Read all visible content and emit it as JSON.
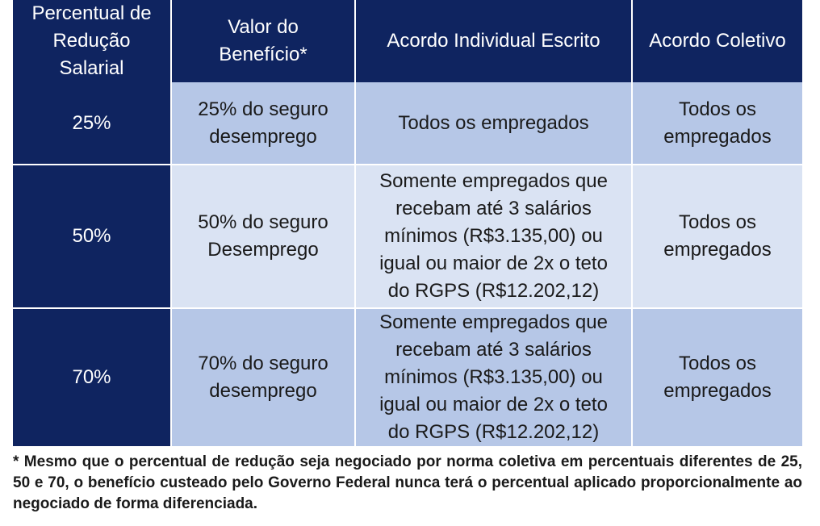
{
  "table": {
    "headers": [
      "Percentual de Redução Salarial",
      "Valor do Benefício*",
      "Acordo Individual Escrito",
      "Acordo Coletivo"
    ],
    "rows": [
      {
        "reduction": "25%",
        "benefit": "25% do seguro desemprego",
        "individual": "Todos os empregados",
        "collective": "Todos os empregados"
      },
      {
        "reduction": "50%",
        "benefit": "50% do seguro Desemprego",
        "individual": "Somente empregados que recebam até 3 salários mínimos (R$3.135,00) ou igual ou maior de 2x o teto do RGPS (R$12.202,12)",
        "collective": "Todos os empregados"
      },
      {
        "reduction": "70%",
        "benefit": "70% do seguro desemprego",
        "individual": "Somente empregados que recebam até 3 salários mínimos (R$3.135,00) ou igual ou maior de 2x o teto do RGPS (R$12.202,12)",
        "collective": "Todos os empregados"
      }
    ]
  },
  "footnote": "* Mesmo que o percentual de redução seja negociado por norma coletiva em percentuais diferentes de 25, 50 e 70, o benefício custeado pelo Governo Federal nunca terá o percentual aplicado proporcionalmente ao negociado de forma diferenciada.",
  "colors": {
    "header_bg": "#0f2460",
    "row_light": "#dae3f3",
    "row_medium": "#b6c7e7"
  }
}
